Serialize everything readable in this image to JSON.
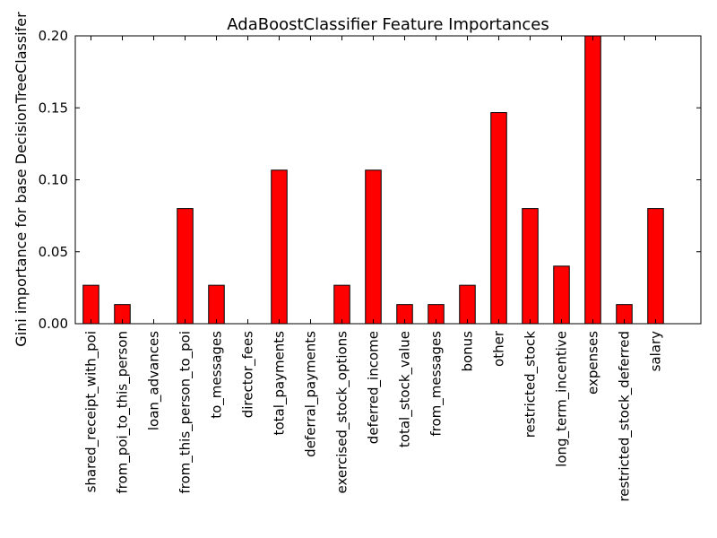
{
  "chart_data": {
    "type": "bar",
    "title": "AdaBoostClassifier Feature Importances",
    "xlabel": "",
    "ylabel": "Gini importance for base DecisionTreeClassifer",
    "ylim": [
      0,
      0.2
    ],
    "yticks": [
      "0.00",
      "0.05",
      "0.10",
      "0.15",
      "0.20"
    ],
    "ytick_values": [
      0,
      0.05,
      0.1,
      0.15,
      0.2
    ],
    "bar_color": "#ff0000",
    "edge_color": "#000000",
    "grid": false,
    "categories": [
      "shared_receipt_with_poi",
      "from_poi_to_this_person",
      "loan_advances",
      "from_this_person_to_poi",
      "to_messages",
      "director_fees",
      "total_payments",
      "deferral_payments",
      "exercised_stock_options",
      "deferred_income",
      "total_stock_value",
      "from_messages",
      "bonus",
      "other",
      "restricted_stock",
      "long_term_incentive",
      "expenses",
      "restricted_stock_deferred",
      "salary"
    ],
    "values": [
      0.0267,
      0.0133,
      0.0,
      0.08,
      0.0267,
      0.0,
      0.1067,
      0.0,
      0.0267,
      0.1067,
      0.0133,
      0.0133,
      0.0267,
      0.1467,
      0.08,
      0.04,
      0.2,
      0.0133,
      0.08
    ]
  }
}
